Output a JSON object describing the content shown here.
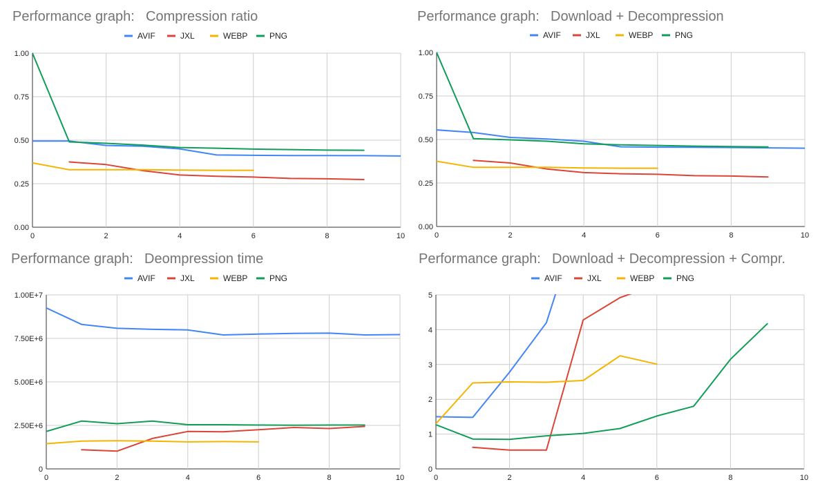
{
  "series_names": [
    "AVIF",
    "JXL",
    "WEBP",
    "PNG"
  ],
  "series_colors": [
    "#4285f4",
    "#db4437",
    "#f4b400",
    "#0f9d58"
  ],
  "chart_data": [
    {
      "type": "line",
      "title": "Performance graph:",
      "subtitle": "Compression ratio",
      "xlim": [
        0,
        10
      ],
      "xticks": [
        0,
        2,
        4,
        6,
        8,
        10
      ],
      "xtick_labels": [
        "0",
        "2",
        "4",
        "6",
        "8",
        "10"
      ],
      "ylim": [
        0,
        1
      ],
      "yticks": [
        0,
        0.25,
        0.5,
        0.75,
        1
      ],
      "ytick_labels": [
        "0.00",
        "0.25",
        "0.50",
        "0.75",
        "1.00"
      ],
      "grid": true,
      "legend": "top-center",
      "series": [
        {
          "name": "AVIF",
          "x": [
            0,
            1,
            2,
            3,
            4,
            5,
            6,
            7,
            8,
            9,
            10
          ],
          "values": [
            0.495,
            0.495,
            0.47,
            0.465,
            0.45,
            0.415,
            0.413,
            0.412,
            0.412,
            0.411,
            0.409
          ]
        },
        {
          "name": "JXL",
          "x": [
            1,
            2,
            3,
            4,
            5,
            6,
            7,
            8,
            9
          ],
          "values": [
            0.375,
            0.36,
            0.325,
            0.3,
            0.293,
            0.288,
            0.28,
            0.278,
            0.274
          ]
        },
        {
          "name": "WEBP",
          "x": [
            0,
            1,
            2,
            3,
            4,
            5,
            6
          ],
          "values": [
            0.37,
            0.33,
            0.33,
            0.33,
            0.328,
            0.327,
            0.327
          ]
        },
        {
          "name": "PNG",
          "x": [
            0,
            1,
            2,
            3,
            4,
            5,
            6,
            7,
            8,
            9
          ],
          "values": [
            1.0,
            0.49,
            0.482,
            0.472,
            0.458,
            0.454,
            0.449,
            0.446,
            0.443,
            0.442
          ]
        }
      ]
    },
    {
      "type": "line",
      "title": "Performance graph:",
      "subtitle": "Download + Decompression",
      "xlim": [
        0,
        10
      ],
      "xticks": [
        0,
        2,
        4,
        6,
        8,
        10
      ],
      "xtick_labels": [
        "0",
        "2",
        "4",
        "6",
        "8",
        "10"
      ],
      "ylim": [
        0,
        1
      ],
      "yticks": [
        0,
        0.25,
        0.5,
        0.75,
        1
      ],
      "ytick_labels": [
        "0.00",
        "0.25",
        "0.50",
        "0.75",
        "1.00"
      ],
      "grid": true,
      "legend": "top-center",
      "series": [
        {
          "name": "AVIF",
          "x": [
            0,
            1,
            2,
            3,
            4,
            5,
            6,
            7,
            8,
            9,
            10
          ],
          "values": [
            0.555,
            0.54,
            0.512,
            0.503,
            0.49,
            0.458,
            0.456,
            0.455,
            0.454,
            0.452,
            0.45
          ]
        },
        {
          "name": "JXL",
          "x": [
            1,
            2,
            3,
            4,
            5,
            6,
            7,
            8,
            9
          ],
          "values": [
            0.38,
            0.365,
            0.33,
            0.31,
            0.303,
            0.3,
            0.292,
            0.29,
            0.285
          ]
        },
        {
          "name": "WEBP",
          "x": [
            0,
            1,
            2,
            3,
            4,
            5,
            6
          ],
          "values": [
            0.375,
            0.34,
            0.34,
            0.34,
            0.336,
            0.335,
            0.335
          ]
        },
        {
          "name": "PNG",
          "x": [
            0,
            1,
            2,
            3,
            4,
            5,
            6,
            7,
            8,
            9
          ],
          "values": [
            1.0,
            0.505,
            0.498,
            0.49,
            0.475,
            0.469,
            0.466,
            0.462,
            0.459,
            0.457
          ]
        }
      ]
    },
    {
      "type": "line",
      "title": "Performance graph:",
      "subtitle": "Deompression time",
      "xlim": [
        0,
        10
      ],
      "xticks": [
        0,
        2,
        4,
        6,
        8,
        10
      ],
      "xtick_labels": [
        "0",
        "2",
        "4",
        "6",
        "8",
        "10"
      ],
      "ylim": [
        0,
        10000000
      ],
      "yticks": [
        0,
        2500000,
        5000000,
        7500000,
        10000000
      ],
      "ytick_labels": [
        "0",
        "2.50E+6",
        "5.00E+6",
        "7.50E+6",
        "1.00E+7"
      ],
      "grid": true,
      "legend": "top-center",
      "series": [
        {
          "name": "AVIF",
          "x": [
            0,
            1,
            2,
            3,
            4,
            5,
            6,
            7,
            8,
            9,
            10
          ],
          "values": [
            9250000,
            8300000,
            8080000,
            8020000,
            7990000,
            7700000,
            7750000,
            7790000,
            7800000,
            7700000,
            7720000
          ]
        },
        {
          "name": "JXL",
          "x": [
            1,
            2,
            3,
            4,
            5,
            6,
            7,
            8,
            9
          ],
          "values": [
            1100000,
            1020000,
            1750000,
            2150000,
            2130000,
            2250000,
            2380000,
            2320000,
            2440000
          ]
        },
        {
          "name": "WEBP",
          "x": [
            0,
            1,
            2,
            3,
            4,
            5,
            6
          ],
          "values": [
            1450000,
            1600000,
            1620000,
            1600000,
            1550000,
            1570000,
            1550000
          ]
        },
        {
          "name": "PNG",
          "x": [
            0,
            1,
            2,
            3,
            4,
            5,
            6,
            7,
            8,
            9
          ],
          "values": [
            2150000,
            2750000,
            2600000,
            2750000,
            2540000,
            2540000,
            2520000,
            2510000,
            2520000,
            2520000
          ]
        }
      ]
    },
    {
      "type": "line",
      "title": "Performance graph:",
      "subtitle": "Download + Decompression + Compr.",
      "xlim": [
        0,
        10
      ],
      "xticks": [
        0,
        2,
        4,
        6,
        8,
        10
      ],
      "xtick_labels": [
        "0",
        "2",
        "4",
        "6",
        "8",
        "10"
      ],
      "ylim": [
        0,
        5
      ],
      "yticks": [
        0,
        1,
        2,
        3,
        4,
        5
      ],
      "ytick_labels": [
        "0",
        "1",
        "2",
        "3",
        "4",
        "5"
      ],
      "grid": true,
      "legend": "top-center",
      "series": [
        {
          "name": "AVIF",
          "x": [
            0,
            1,
            2,
            3,
            4
          ],
          "values": [
            1.5,
            1.48,
            2.78,
            4.2,
            7.5
          ]
        },
        {
          "name": "JXL",
          "x": [
            1,
            2,
            3,
            4,
            5,
            6
          ],
          "values": [
            0.62,
            0.54,
            0.54,
            4.28,
            4.92,
            5.3
          ]
        },
        {
          "name": "WEBP",
          "x": [
            0,
            1,
            2,
            3,
            4,
            5,
            6
          ],
          "values": [
            1.3,
            2.47,
            2.5,
            2.49,
            2.54,
            3.25,
            3.01
          ]
        },
        {
          "name": "PNG",
          "x": [
            0,
            1,
            2,
            3,
            4,
            5,
            6,
            7,
            8,
            9
          ],
          "values": [
            1.27,
            0.86,
            0.85,
            0.95,
            1.02,
            1.16,
            1.52,
            1.8,
            3.15,
            4.17
          ]
        }
      ]
    }
  ]
}
